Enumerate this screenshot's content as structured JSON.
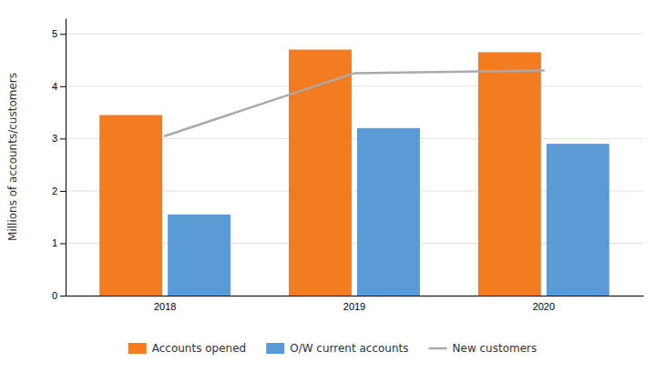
{
  "chart_data": {
    "type": "bar",
    "ylabel": "Millions of accounts/customers",
    "categories": [
      "2018",
      "2019",
      "2020"
    ],
    "series": [
      {
        "name": "Accounts opened",
        "type": "bar",
        "color": "#F47C20",
        "values": [
          3.45,
          4.7,
          4.65
        ]
      },
      {
        "name": "O/W current accounts",
        "type": "bar",
        "color": "#5B9BD5",
        "values": [
          1.55,
          3.2,
          2.9
        ]
      },
      {
        "name": "New customers",
        "type": "line",
        "color": "#aaaaaa",
        "values": [
          3.05,
          4.25,
          4.3
        ]
      }
    ],
    "ylim": [
      0,
      5.3
    ],
    "yticks": [
      0,
      1,
      2,
      3,
      4,
      5
    ],
    "grid": true,
    "legend": "bottom"
  }
}
